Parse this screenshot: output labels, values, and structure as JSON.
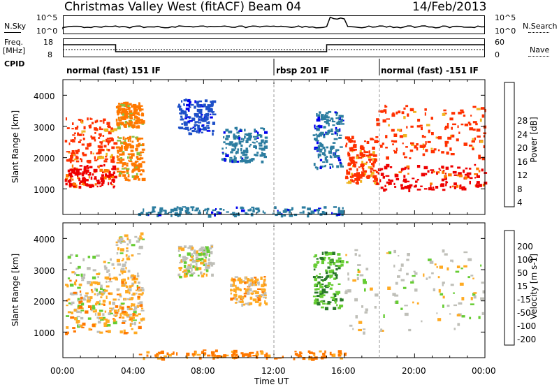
{
  "header": {
    "station": "Christmas Valley West (fitACF)",
    "beam": "Beam 04",
    "date": "14/Feb/2013"
  },
  "noise_panel": {
    "left_label": "N.Sky",
    "right_label": "N.Search",
    "left_ticks": [
      "10^5",
      "10^0"
    ],
    "right_ticks": [
      "10^5",
      "10^0"
    ]
  },
  "freq_panel": {
    "left_label_1": "Freq.",
    "left_label_2": "[MHz]",
    "right_label": "Nave",
    "left_ticks": [
      "18",
      "8"
    ],
    "right_ticks": [
      "60",
      "0"
    ]
  },
  "cpid_label": "CPID",
  "programs": [
    {
      "name": "normal (fast) 151 IF",
      "start_hour": 0
    },
    {
      "name": "rbsp 201 IF",
      "start_hour": 12
    },
    {
      "name": "normal (fast) -151 IF",
      "start_hour": 18
    }
  ],
  "axes": {
    "ylabel": "Slant Range [km]",
    "xlabel": "Time UT",
    "x_ticks": [
      "00:00",
      "04:00",
      "08:00",
      "12:00",
      "16:00",
      "20:00",
      "00:00"
    ],
    "y_ticks": [
      "1000",
      "2000",
      "3000",
      "4000"
    ]
  },
  "colors": {
    "power": [
      "#0000ee",
      "#1e50c8",
      "#2c7da0",
      "#4f9b5f",
      "#88c040",
      "#f0b41e",
      "#ff7800",
      "#ff3000",
      "#ee0000"
    ],
    "velocity": [
      "#ee0000",
      "#ff3000",
      "#ff7800",
      "#ffaa22",
      "#bfbfb8",
      "#bfbfb8",
      "#66cc33",
      "#2a7a2a",
      "#2a5aa0",
      "#1a1aaa"
    ]
  },
  "chart_data": [
    {
      "type": "heatmap",
      "name": "Power",
      "colorbar_label": "Power [dB]",
      "colorbar_ticks": [
        "28",
        "24",
        "20",
        "16",
        "12",
        "8",
        "4"
      ],
      "x_range_hours": [
        0,
        24
      ],
      "y_range_km": [
        180,
        4500
      ],
      "regions": [
        {
          "t0": 0.1,
          "t1": 2.9,
          "r0": 1100,
          "r1": 1800,
          "level": 28
        },
        {
          "t0": 0.1,
          "t1": 2.9,
          "r0": 1900,
          "r1": 3300,
          "level": 27
        },
        {
          "t0": 3.0,
          "t1": 4.5,
          "r0": 1300,
          "r1": 2700,
          "level": 24
        },
        {
          "t0": 3.0,
          "t1": 4.5,
          "r0": 3000,
          "r1": 3800,
          "level": 22
        },
        {
          "t0": 6.5,
          "t1": 8.5,
          "r0": 2800,
          "r1": 3900,
          "level": 6
        },
        {
          "t0": 9.0,
          "t1": 11.5,
          "r0": 1900,
          "r1": 3000,
          "level": 7
        },
        {
          "t0": 14.2,
          "t1": 15.8,
          "r0": 1700,
          "r1": 3500,
          "level": 8
        },
        {
          "t0": 16.0,
          "t1": 17.8,
          "r0": 1200,
          "r1": 2700,
          "level": 26
        },
        {
          "t0": 17.8,
          "t1": 24.0,
          "r0": 1000,
          "r1": 1800,
          "level": 28
        },
        {
          "t0": 17.8,
          "t1": 24.0,
          "r0": 2000,
          "r1": 3700,
          "level": 27
        },
        {
          "t0": 4.2,
          "t1": 16.0,
          "r0": 180,
          "r1": 450,
          "level": 10
        }
      ]
    },
    {
      "type": "heatmap",
      "name": "Velocity",
      "colorbar_label": "Velocity [m s-1]",
      "colorbar_ticks": [
        "200",
        "100",
        "50",
        "15",
        "-15",
        "-50",
        "-100",
        "-200"
      ],
      "x_range_hours": [
        0,
        24
      ],
      "y_range_km": [
        180,
        4500
      ],
      "regions": [
        {
          "t0": 0.1,
          "t1": 2.9,
          "r0": 1200,
          "r1": 3500,
          "value": 0
        },
        {
          "t0": 3.0,
          "t1": 4.5,
          "r0": 1300,
          "r1": 4200,
          "value": -10
        },
        {
          "t0": 0.1,
          "t1": 4.5,
          "r0": 1000,
          "r1": 2800,
          "value": -40
        },
        {
          "t0": 6.5,
          "t1": 8.5,
          "r0": 2800,
          "r1": 3800,
          "value": 0
        },
        {
          "t0": 9.5,
          "t1": 11.5,
          "r0": 1900,
          "r1": 2800,
          "value": -30
        },
        {
          "t0": 14.2,
          "t1": 15.8,
          "r0": 1800,
          "r1": 3600,
          "value": 50
        },
        {
          "t0": 16.0,
          "t1": 24.0,
          "r0": 1000,
          "r1": 3700,
          "value": 0
        },
        {
          "t0": 4.2,
          "t1": 16.0,
          "r0": 180,
          "r1": 450,
          "value": -60
        }
      ]
    }
  ]
}
